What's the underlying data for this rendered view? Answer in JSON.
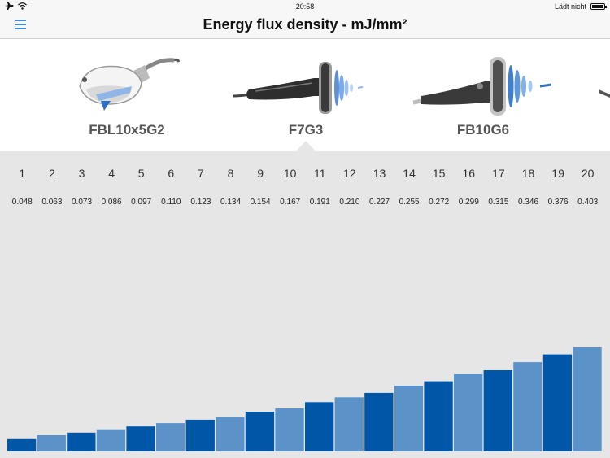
{
  "status_bar": {
    "time": "20:58",
    "charging_text": "Lädt nicht",
    "icons": [
      "airplane-icon",
      "wifi-icon",
      "battery-icon"
    ]
  },
  "nav": {
    "title": "Energy flux density - mJ/mm²",
    "menu_icon": "hamburger-icon",
    "accent_color": "#3d8fd6"
  },
  "devices": [
    {
      "label": "FBL10x5G2"
    },
    {
      "label": "F7G3",
      "selected": true
    },
    {
      "label": "FB10G6"
    }
  ],
  "chart_data": {
    "type": "bar",
    "categories": [
      "1",
      "2",
      "3",
      "4",
      "5",
      "6",
      "7",
      "8",
      "9",
      "10",
      "11",
      "12",
      "13",
      "14",
      "15",
      "16",
      "17",
      "18",
      "19",
      "20"
    ],
    "values": [
      0.048,
      0.063,
      0.073,
      0.086,
      0.097,
      0.11,
      0.123,
      0.134,
      0.154,
      0.167,
      0.191,
      0.21,
      0.227,
      0.255,
      0.272,
      0.299,
      0.315,
      0.346,
      0.376,
      0.403
    ],
    "value_labels": [
      "0.048",
      "0.063",
      "0.073",
      "0.086",
      "0.097",
      "0.110",
      "0.123",
      "0.134",
      "0.154",
      "0.167",
      "0.191",
      "0.210",
      "0.227",
      "0.255",
      "0.272",
      "0.299",
      "0.315",
      "0.346",
      "0.376",
      "0.403"
    ],
    "colors": {
      "dark": "#0057a8",
      "light": "#5b93c9"
    },
    "ylim": [
      0,
      0.403
    ]
  }
}
